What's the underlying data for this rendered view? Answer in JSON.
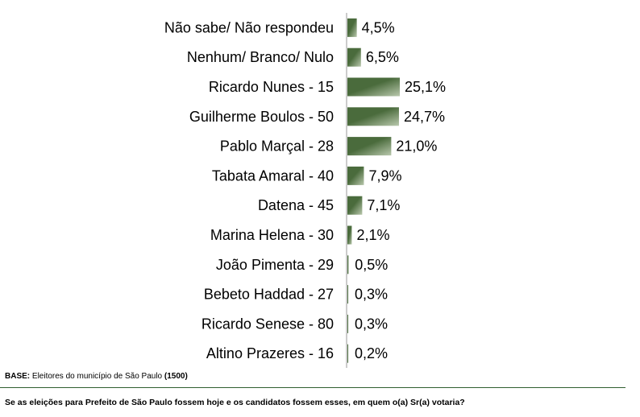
{
  "chart_data": {
    "type": "bar",
    "orientation": "horizontal",
    "categories": [
      "Não sabe/ Não respondeu",
      "Nenhum/ Branco/ Nulo",
      "Ricardo Nunes - 15",
      "Guilherme Boulos - 50",
      "Pablo Marçal - 28",
      "Tabata Amaral - 40",
      "Datena - 45",
      "Marina Helena - 30",
      "João Pimenta - 29",
      "Bebeto Haddad - 27",
      "Ricardo Senese - 80",
      "Altino Prazeres - 16"
    ],
    "values": [
      4.5,
      6.5,
      25.1,
      24.7,
      21.0,
      7.9,
      7.1,
      2.1,
      0.5,
      0.3,
      0.3,
      0.2
    ],
    "value_labels": [
      "4,5%",
      "6,5%",
      "25,1%",
      "24,7%",
      "21,0%",
      "7,9%",
      "7,1%",
      "2,1%",
      "0,5%",
      "0,3%",
      "0,3%",
      "0,2%"
    ],
    "xlim": [
      0,
      27
    ],
    "bar_color": "#4a6b3c",
    "bar_highlight": "#b9c8ad",
    "axis_color": "#999999"
  },
  "footer": {
    "base_label": "BASE:",
    "base_text": " Eleitores do município de São Paulo ",
    "base_count": "(1500)",
    "question": "Se as eleições para Prefeito de São Paulo fossem hoje e os candidatos fossem esses, em quem o(a) Sr(a) votaria?"
  }
}
